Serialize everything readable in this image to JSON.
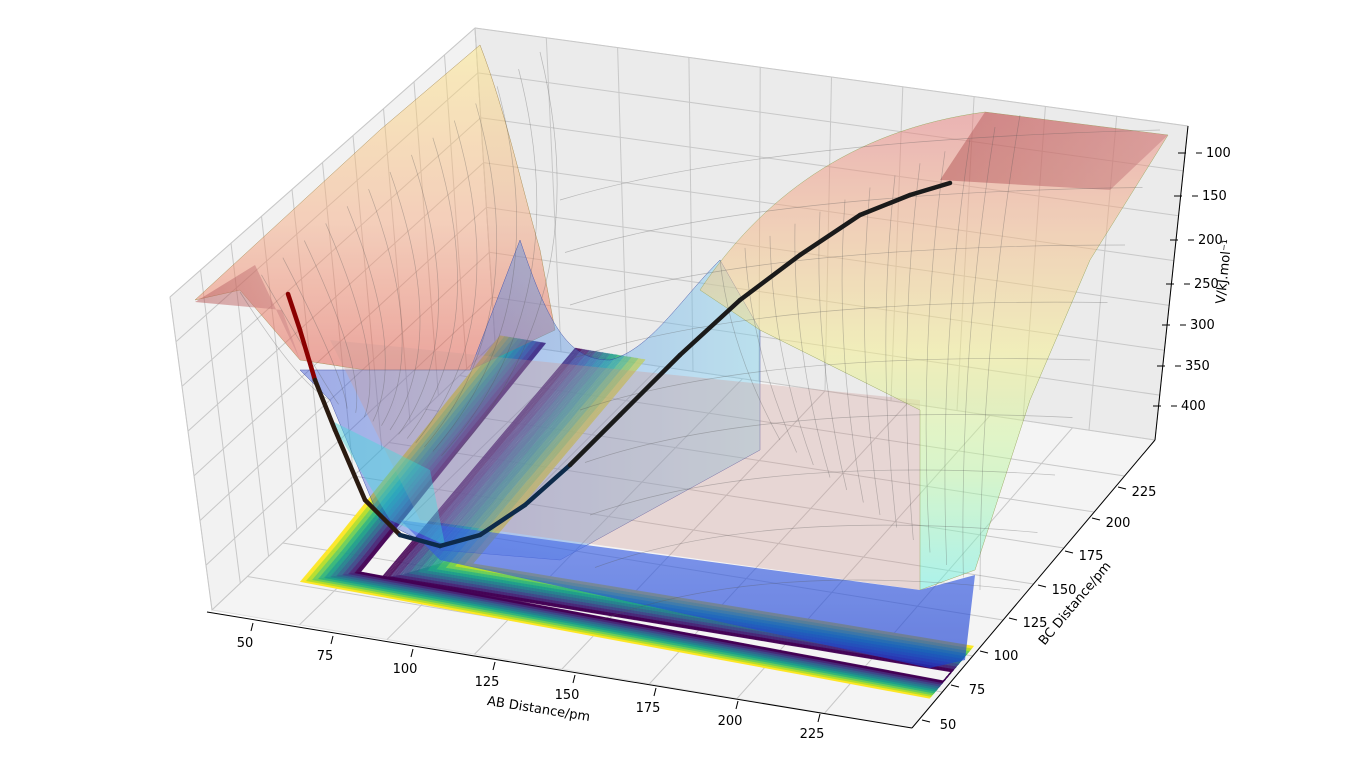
{
  "chart_data": {
    "type": "surface3d",
    "x_axis": {
      "label": "AB Distance/pm",
      "ticks": [
        "50",
        "75",
        "100",
        "125",
        "150",
        "175",
        "200",
        "225"
      ],
      "range": [
        40,
        240
      ]
    },
    "y_axis": {
      "label": "BC Distance/pm",
      "ticks": [
        "50",
        "75",
        "100",
        "125",
        "150",
        "175",
        "200",
        "225"
      ],
      "range": [
        40,
        240
      ]
    },
    "z_axis": {
      "label": "V/kJ.mol⁻¹",
      "ticks": [
        "100",
        "150",
        "200",
        "250",
        "300",
        "350",
        "400"
      ],
      "values": [
        -100,
        -150,
        -200,
        -250,
        -300,
        -350,
        -400
      ]
    },
    "surface": {
      "colormap": "jet",
      "alpha": 0.35,
      "description_values": {
        "min_energy": -430,
        "plateau_energy": -110
      }
    },
    "contours": {
      "colormap": "viridis",
      "projected_on": "floor"
    },
    "trajectory": {
      "color_start": "#000000",
      "color_end": "#b22222",
      "points": [
        {
          "ab": 45,
          "bc": 235,
          "v": -115
        },
        {
          "ab": 60,
          "bc": 180,
          "v": -250
        },
        {
          "ab": 75,
          "bc": 140,
          "v": -380
        },
        {
          "ab": 90,
          "bc": 110,
          "v": -425
        },
        {
          "ab": 110,
          "bc": 95,
          "v": -405
        },
        {
          "ab": 140,
          "bc": 85,
          "v": -330
        },
        {
          "ab": 170,
          "bc": 80,
          "v": -250
        },
        {
          "ab": 200,
          "bc": 76,
          "v": -180
        },
        {
          "ab": 235,
          "bc": 74,
          "v": -120
        }
      ]
    },
    "grid": true
  }
}
